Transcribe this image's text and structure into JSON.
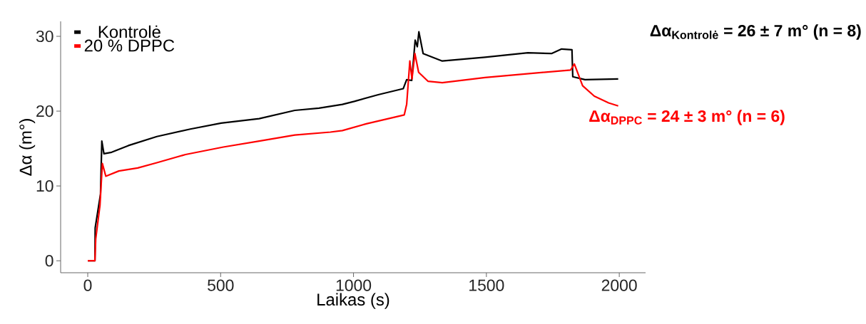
{
  "chart_data": {
    "type": "line",
    "xlabel": "Laikas (s)",
    "ylabel": "Δα (m°)",
    "xlim": [
      -102,
      2099
    ],
    "ylim": [
      -1.6,
      32
    ],
    "xticks": [
      0,
      500,
      1000,
      1500,
      2000
    ],
    "yticks": [
      0,
      10,
      20,
      30
    ],
    "grid": false,
    "legend": "top left",
    "marker": "none",
    "line_style": "solid",
    "annotations": [
      "**Δα$_{Kontrolė}$ = 26 ± 7 m° (n = 8)**",
      "**Δα$_{DPPC}$ = 24 ± 3 m° (n = 6)**"
    ],
    "series": [
      {
        "name": "Kontrolė",
        "color": "#000000",
        "x": [
          0,
          27,
          28,
          48,
          53,
          61,
          90,
          153,
          260,
          386,
          502,
          645,
          779,
          870,
          958,
          1003,
          1093,
          1187,
          1200,
          1219,
          1232,
          1240,
          1246,
          1262,
          1334,
          1495,
          1656,
          1745,
          1783,
          1822,
          1825,
          1871,
          1996
        ],
        "values": [
          0,
          0,
          4.4,
          8.9,
          16,
          14.3,
          14.5,
          15.4,
          16.6,
          17.6,
          18.4,
          19.0,
          20.1,
          20.4,
          20.9,
          21.3,
          22.2,
          23.0,
          24.2,
          24.1,
          29.5,
          28.6,
          30.6,
          27.7,
          26.7,
          27.2,
          27.8,
          27.7,
          28.3,
          28.2,
          24.6,
          24.2,
          24.3
        ]
      },
      {
        "name": "20 % DPPC",
        "color": "#ff0000",
        "x": [
          0,
          27,
          30,
          46,
          55,
          68,
          117,
          188,
          260,
          368,
          510,
          645,
          779,
          913,
          958,
          1048,
          1191,
          1200,
          1212,
          1220,
          1231,
          1245,
          1280,
          1334,
          1495,
          1656,
          1817,
          1831,
          1862,
          1906,
          1960,
          1996
        ],
        "values": [
          0,
          0,
          2.9,
          7.4,
          13.0,
          11.3,
          12.0,
          12.4,
          13.1,
          14.2,
          15.2,
          16.0,
          16.8,
          17.2,
          17.4,
          18.3,
          19.5,
          20.9,
          26.7,
          24.3,
          27.7,
          25.2,
          24.0,
          23.8,
          24.5,
          25.0,
          25.5,
          26.3,
          23.4,
          22.0,
          21.1,
          20.7
        ]
      }
    ]
  }
}
